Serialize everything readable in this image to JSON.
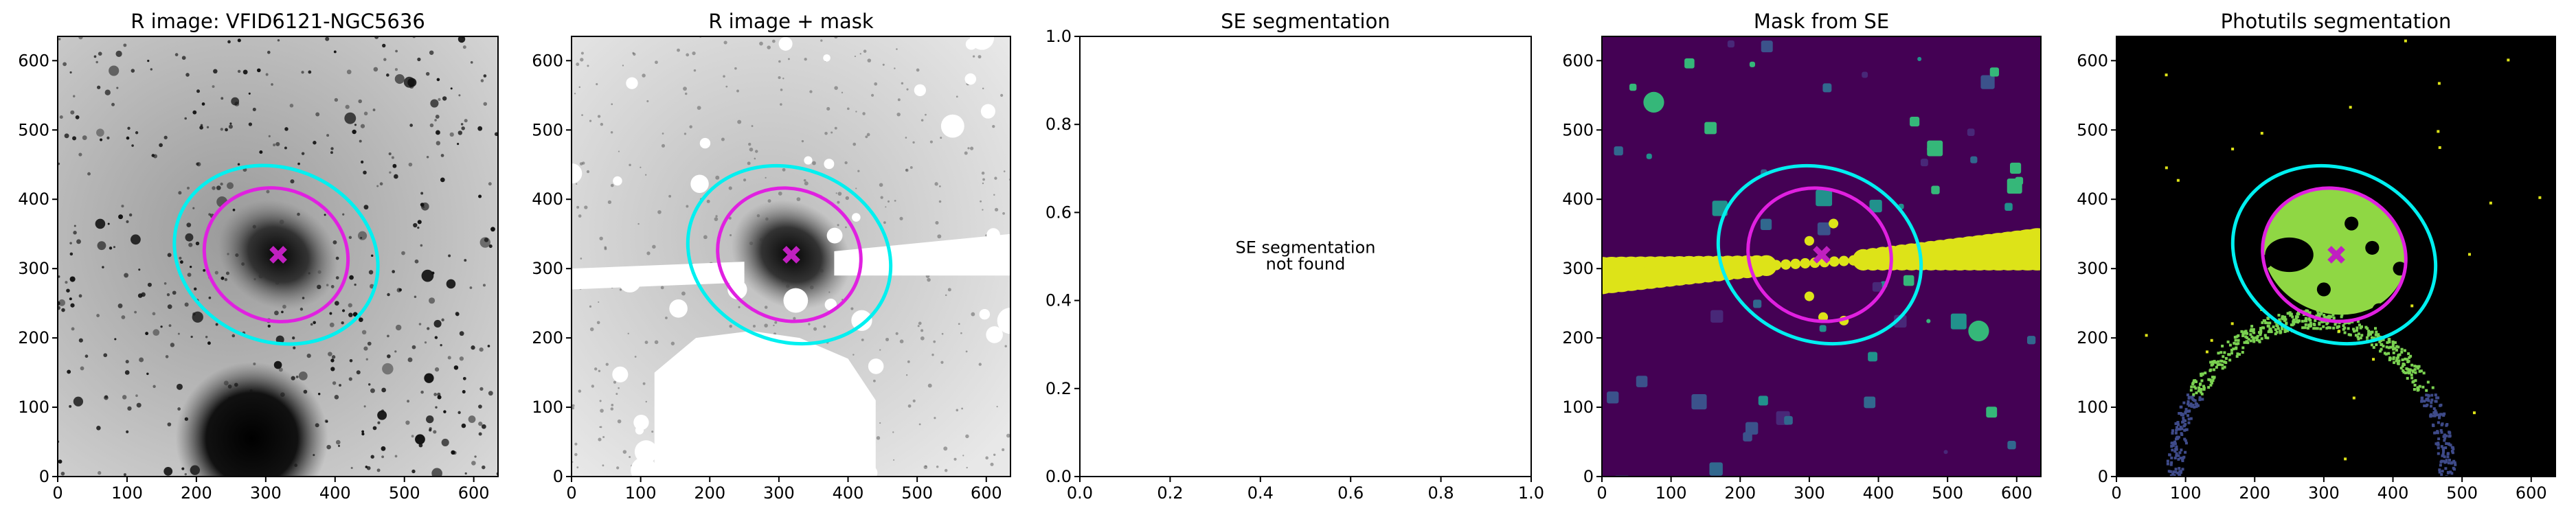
{
  "chart_data": [
    {
      "type": "image",
      "title": "R image: VFID6121-NGC5636",
      "xlim": [
        0,
        635
      ],
      "ylim": [
        0,
        635
      ],
      "xticks": [
        0,
        100,
        200,
        300,
        400,
        500,
        600
      ],
      "yticks": [
        0,
        100,
        200,
        300,
        400,
        500,
        600
      ],
      "cmap": "gray_r"
    },
    {
      "type": "image",
      "title": "R image + mask",
      "xlim": [
        0,
        635
      ],
      "ylim": [
        0,
        635
      ],
      "xticks": [
        0,
        100,
        200,
        300,
        400,
        500,
        600
      ],
      "yticks": [
        0,
        100,
        200,
        300,
        400,
        500,
        600
      ],
      "cmap": "gray_r"
    },
    {
      "type": "empty",
      "title": "SE segmentation",
      "annotation": [
        "SE segmentation",
        "not found"
      ],
      "xlim": [
        0,
        1
      ],
      "ylim": [
        0,
        1
      ],
      "xticks": [
        {
          "value": 0,
          "label": "0.0"
        },
        0.2,
        0.4,
        0.6,
        0.8,
        {
          "value": 1,
          "label": "1.0"
        }
      ],
      "yticks": [
        {
          "value": 0,
          "label": "0.0"
        },
        0.2,
        0.4,
        0.6,
        0.8,
        {
          "value": 1,
          "label": "1.0"
        }
      ]
    },
    {
      "type": "image",
      "title": "Mask from SE",
      "xlim": [
        0,
        635
      ],
      "ylim": [
        0,
        635
      ],
      "xticks": [
        0,
        100,
        200,
        300,
        400,
        500,
        600
      ],
      "yticks": [
        0,
        100,
        200,
        300,
        400,
        500,
        600
      ],
      "cmap": "viridis"
    },
    {
      "type": "image",
      "title": "Photutils segmentation",
      "xlim": [
        0,
        635
      ],
      "ylim": [
        0,
        635
      ],
      "xticks": [
        0,
        100,
        200,
        300,
        400,
        500,
        600
      ],
      "yticks": [
        0,
        100,
        200,
        300,
        400,
        500,
        600
      ],
      "cmap": "viridis"
    }
  ]
}
